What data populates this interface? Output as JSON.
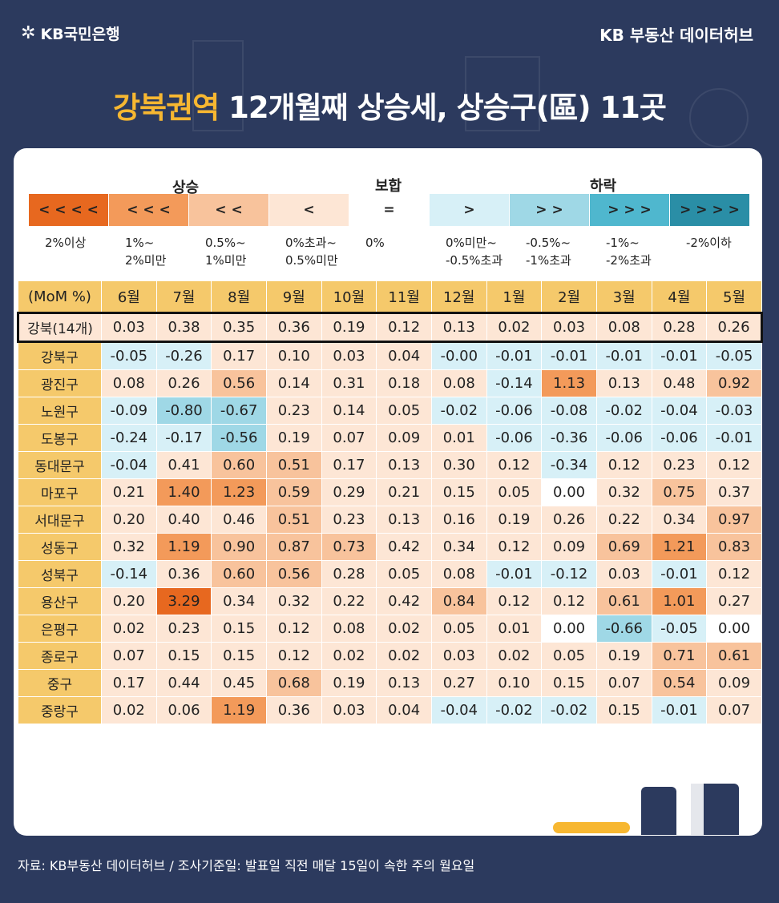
{
  "header": {
    "bank_logo": "KB국민은행",
    "hub_label": "KB 부동산  데이터허브",
    "title_highlight": "강북권역",
    "title_rest": " 12개월째 상승세, 상승구(區) 11곳"
  },
  "legend": {
    "groups": {
      "up": "상승",
      "flat": "보합",
      "down": "하락"
    },
    "items": [
      {
        "symbol": "< < < <",
        "caption": "2%이상",
        "color": "#e7681f"
      },
      {
        "symbol": "< < <",
        "caption": "1%~\n2%미만",
        "color": "#f39a5a"
      },
      {
        "symbol": "< <",
        "caption": "0.5%~\n1%미만",
        "color": "#f8c39c"
      },
      {
        "symbol": "<",
        "caption": "0%초과~\n0.5%미만",
        "color": "#fde6d5"
      },
      {
        "symbol": "=",
        "caption": "0%",
        "color": "#ffffff"
      },
      {
        "symbol": ">",
        "caption": "0%미만~\n-0.5%초과",
        "color": "#d7f0f7"
      },
      {
        "symbol": "> >",
        "caption": "-0.5%~\n-1%초과",
        "color": "#9fd8e6"
      },
      {
        "symbol": "> > >",
        "caption": "-1%~\n-2%초과",
        "color": "#4fb7ce"
      },
      {
        "symbol": "> > > >",
        "caption": "-2%이하",
        "color": "#2a8ea6"
      }
    ]
  },
  "table": {
    "corner": "(MoM %)",
    "months": [
      "6월",
      "7월",
      "8월",
      "9월",
      "10월",
      "11월",
      "12월",
      "1월",
      "2월",
      "3월",
      "4월",
      "5월"
    ],
    "rows": [
      {
        "name": "강북(14개)",
        "values": [
          "0.03",
          "0.38",
          "0.35",
          "0.36",
          "0.19",
          "0.12",
          "0.13",
          "0.02",
          "0.03",
          "0.08",
          "0.28",
          "0.26"
        ]
      },
      {
        "name": "강북구",
        "values": [
          "-0.05",
          "-0.26",
          "0.17",
          "0.10",
          "0.03",
          "0.04",
          "-0.00",
          "-0.01",
          "-0.01",
          "-0.01",
          "-0.01",
          "-0.05"
        ]
      },
      {
        "name": "광진구",
        "values": [
          "0.08",
          "0.26",
          "0.56",
          "0.14",
          "0.31",
          "0.18",
          "0.08",
          "-0.14",
          "1.13",
          "0.13",
          "0.48",
          "0.92"
        ]
      },
      {
        "name": "노원구",
        "values": [
          "-0.09",
          "-0.80",
          "-0.67",
          "0.23",
          "0.14",
          "0.05",
          "-0.02",
          "-0.06",
          "-0.08",
          "-0.02",
          "-0.04",
          "-0.03"
        ]
      },
      {
        "name": "도봉구",
        "values": [
          "-0.24",
          "-0.17",
          "-0.56",
          "0.19",
          "0.07",
          "0.09",
          "0.01",
          "-0.06",
          "-0.36",
          "-0.06",
          "-0.06",
          "-0.01"
        ]
      },
      {
        "name": "동대문구",
        "values": [
          "-0.04",
          "0.41",
          "0.60",
          "0.51",
          "0.17",
          "0.13",
          "0.30",
          "0.12",
          "-0.34",
          "0.12",
          "0.23",
          "0.12"
        ]
      },
      {
        "name": "마포구",
        "values": [
          "0.21",
          "1.40",
          "1.23",
          "0.59",
          "0.29",
          "0.21",
          "0.15",
          "0.05",
          "0.00",
          "0.32",
          "0.75",
          "0.37"
        ]
      },
      {
        "name": "서대문구",
        "values": [
          "0.20",
          "0.40",
          "0.46",
          "0.51",
          "0.23",
          "0.13",
          "0.16",
          "0.19",
          "0.26",
          "0.22",
          "0.34",
          "0.97"
        ]
      },
      {
        "name": "성동구",
        "values": [
          "0.32",
          "1.19",
          "0.90",
          "0.87",
          "0.73",
          "0.42",
          "0.34",
          "0.12",
          "0.09",
          "0.69",
          "1.21",
          "0.83"
        ]
      },
      {
        "name": "성북구",
        "values": [
          "-0.14",
          "0.36",
          "0.60",
          "0.56",
          "0.28",
          "0.05",
          "0.08",
          "-0.01",
          "-0.12",
          "0.03",
          "-0.01",
          "0.12"
        ]
      },
      {
        "name": "용산구",
        "values": [
          "0.20",
          "3.29",
          "0.34",
          "0.32",
          "0.22",
          "0.42",
          "0.84",
          "0.12",
          "0.12",
          "0.61",
          "1.01",
          "0.27"
        ]
      },
      {
        "name": "은평구",
        "values": [
          "0.02",
          "0.23",
          "0.15",
          "0.12",
          "0.08",
          "0.02",
          "0.05",
          "0.01",
          "0.00",
          "-0.66",
          "-0.05",
          "0.00"
        ]
      },
      {
        "name": "종로구",
        "values": [
          "0.07",
          "0.15",
          "0.15",
          "0.12",
          "0.02",
          "0.02",
          "0.03",
          "0.02",
          "0.05",
          "0.19",
          "0.71",
          "0.61"
        ]
      },
      {
        "name": "중구",
        "values": [
          "0.17",
          "0.44",
          "0.45",
          "0.68",
          "0.19",
          "0.13",
          "0.27",
          "0.10",
          "0.15",
          "0.07",
          "0.54",
          "0.09"
        ]
      },
      {
        "name": "중랑구",
        "values": [
          "0.02",
          "0.06",
          "1.19",
          "0.36",
          "0.03",
          "0.04",
          "-0.04",
          "-0.02",
          "-0.02",
          "0.15",
          "-0.01",
          "0.07"
        ]
      }
    ]
  },
  "footer": {
    "source": "자료: KB부동산 데이터허브 / 조사기준일: 발표일 직전 매달 15일이 속한 주의 월요일"
  }
}
